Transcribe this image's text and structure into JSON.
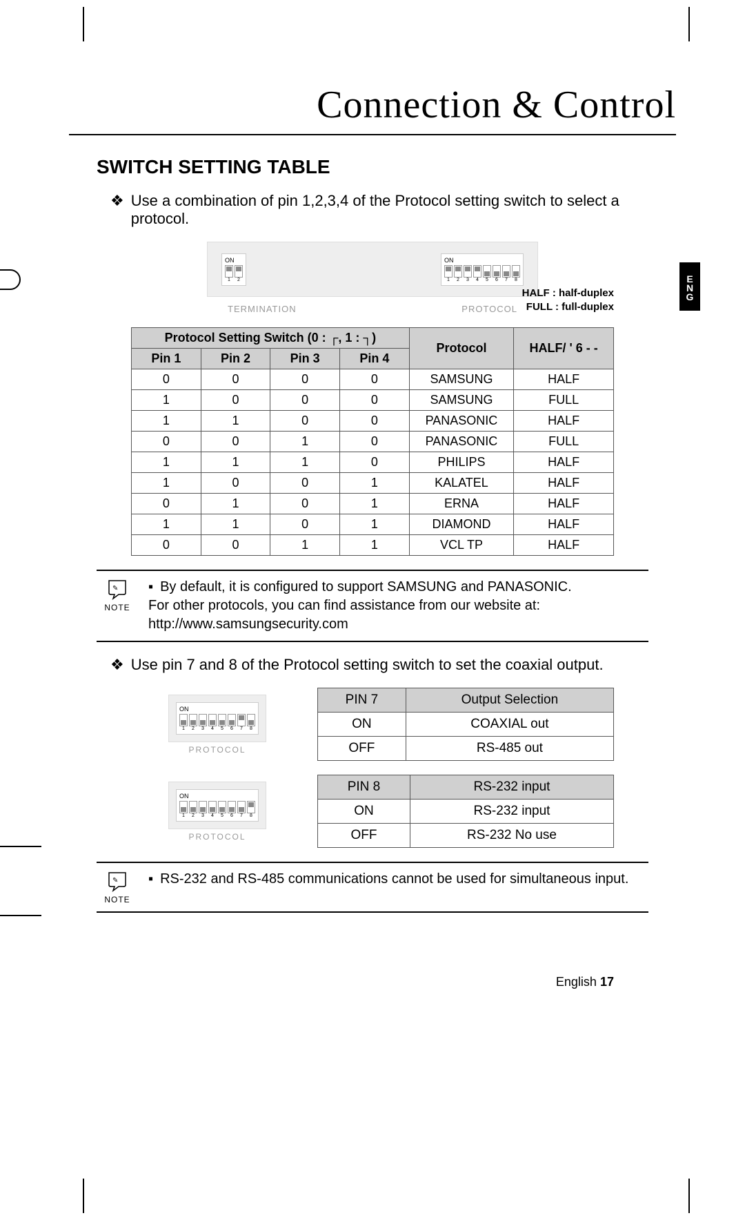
{
  "chapter_title": "Connection & Control",
  "section_title": "SWITCH SETTING TABLE",
  "intro_bullet_glyph": "❖",
  "intro_text": "Use a combination of pin 1,2,3,4 of the Protocol setting switch to select a protocol.",
  "diagram_labels": {
    "termination": "TERMINATION",
    "protocol": "PROTOCOL",
    "on": "ON"
  },
  "duplex_legend": {
    "half": "HALF : half-duplex",
    "full": "FULL : full-duplex"
  },
  "lang_tab": "ENG",
  "main_table": {
    "header_group": "Protocol Setting Switch (0 : ┌, 1 : ┐)",
    "header_pins": [
      "Pin 1",
      "Pin 2",
      "Pin 3",
      "Pin 4"
    ],
    "header_protocol": "Protocol",
    "header_half": "HALF/ ' 6 - -",
    "rows": [
      {
        "pins": [
          "0",
          "0",
          "0",
          "0"
        ],
        "protocol": "SAMSUNG",
        "mode": "HALF"
      },
      {
        "pins": [
          "1",
          "0",
          "0",
          "0"
        ],
        "protocol": "SAMSUNG",
        "mode": "FULL"
      },
      {
        "pins": [
          "1",
          "1",
          "0",
          "0"
        ],
        "protocol": "PANASONIC",
        "mode": "HALF"
      },
      {
        "pins": [
          "0",
          "0",
          "1",
          "0"
        ],
        "protocol": "PANASONIC",
        "mode": "FULL"
      },
      {
        "pins": [
          "1",
          "1",
          "1",
          "0"
        ],
        "protocol": "PHILIPS",
        "mode": "HALF"
      },
      {
        "pins": [
          "1",
          "0",
          "0",
          "1"
        ],
        "protocol": "KALATEL",
        "mode": "HALF"
      },
      {
        "pins": [
          "0",
          "1",
          "0",
          "1"
        ],
        "protocol": "ERNA",
        "mode": "HALF"
      },
      {
        "pins": [
          "1",
          "1",
          "0",
          "1"
        ],
        "protocol": "DIAMOND",
        "mode": "HALF"
      },
      {
        "pins": [
          "0",
          "0",
          "1",
          "1"
        ],
        "protocol": "VCL TP",
        "mode": "HALF"
      }
    ]
  },
  "note1": {
    "label": "NOTE",
    "line1": "By default, it is configured to support SAMSUNG and PANASONIC.",
    "line2": "For other protocols, you can find assistance from our website at:",
    "line3": "http://www.samsungsecurity.com"
  },
  "second_bullet_text": "Use pin 7 and 8 of the Protocol setting switch to set the coaxial output.",
  "pin7_table": {
    "head_left": "PIN 7",
    "head_right": "Output Selection",
    "rows": [
      {
        "l": "ON",
        "r": "COAXIAL out"
      },
      {
        "l": "OFF",
        "r": "RS-485 out"
      }
    ]
  },
  "pin8_table": {
    "head_left": "PIN 8",
    "head_right": "RS-232 input",
    "rows": [
      {
        "l": "ON",
        "r": "RS-232 input"
      },
      {
        "l": "OFF",
        "r": "RS-232 No use"
      }
    ]
  },
  "pin_diagram_label": "PROTOCOL",
  "note2": {
    "label": "NOTE",
    "line1": "RS-232 and RS-485 communications cannot be used for simultaneous input."
  },
  "footer": {
    "lang": "English",
    "page": "17"
  }
}
